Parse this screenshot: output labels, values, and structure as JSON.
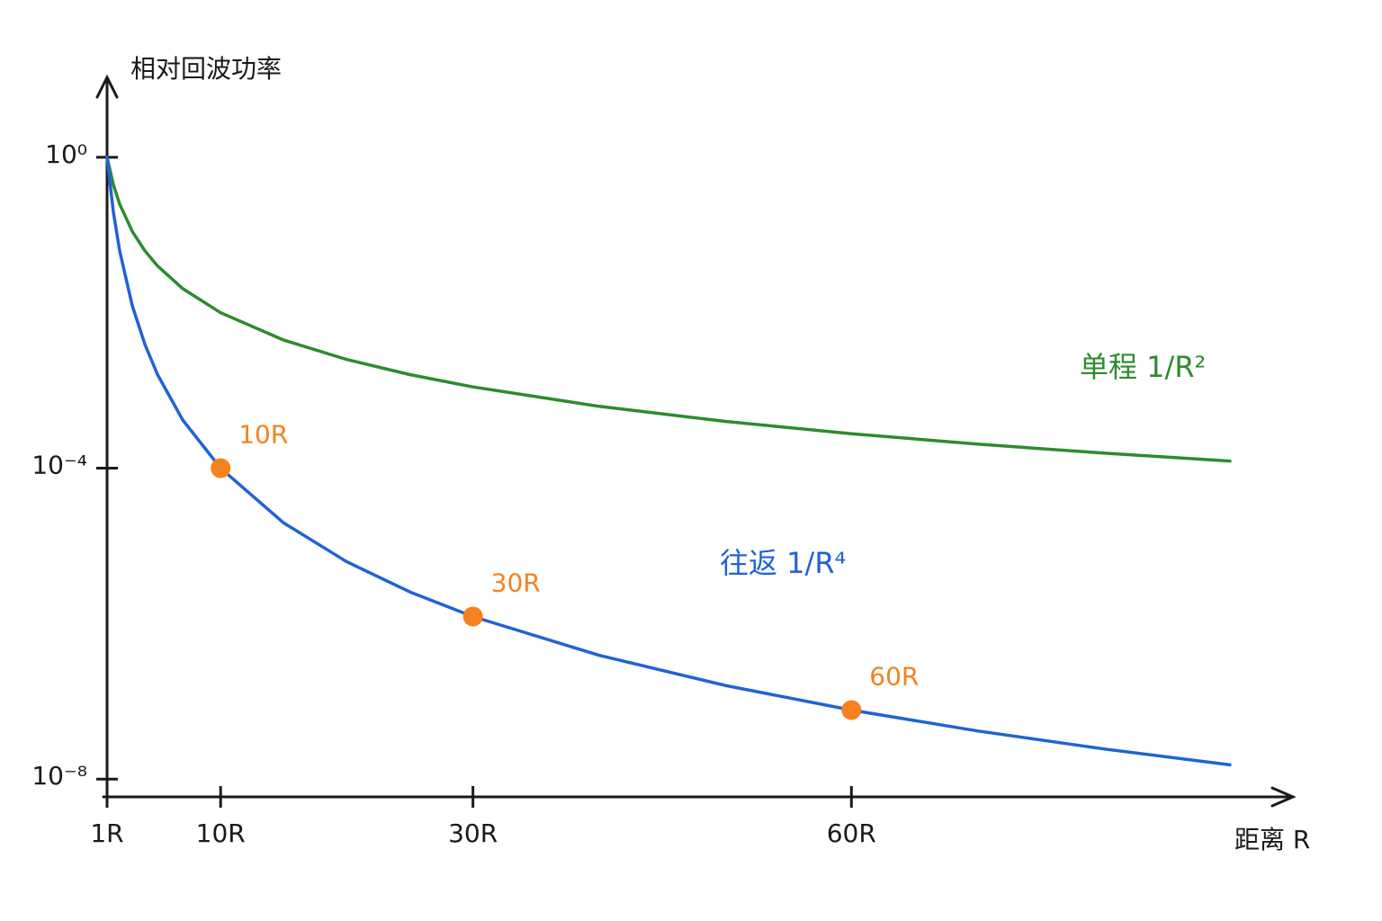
{
  "chart_data": {
    "type": "line",
    "y_label": "相对回波功率",
    "x_label": "距离 R",
    "log_y": true,
    "x": [
      1,
      1.5,
      2,
      3,
      4,
      5,
      7,
      10,
      15,
      20,
      25,
      30,
      40,
      50,
      60,
      70,
      80,
      90
    ],
    "series": [
      {
        "name": "单程 1/R²",
        "color": "#2e8b2e",
        "values": [
          1,
          0.4444,
          0.25,
          0.1111,
          0.0625,
          0.04,
          0.020408,
          0.01,
          0.004444,
          0.0025,
          0.0016,
          0.001111,
          0.000625,
          0.0004,
          0.0002778,
          0.0002041,
          0.00015625,
          0.00012346
        ]
      },
      {
        "name": "往返 1/R⁴",
        "color": "#1f63d6",
        "values": [
          1,
          0.19753,
          0.0625,
          0.012346,
          0.0039063,
          0.0016,
          0.00041649,
          0.0001,
          1.9753e-05,
          6.25e-06,
          2.56e-06,
          1.2346e-06,
          3.90625e-07,
          1.6e-07,
          7.716e-08,
          4.1649e-08,
          2.4414e-08,
          1.5242e-08
        ]
      }
    ],
    "highlights": {
      "color": "#f5821f",
      "x": [
        10,
        30,
        60
      ],
      "values": [
        0.0001,
        1.2346e-06,
        7.716e-08
      ],
      "labels": [
        "10R",
        "30R",
        "60R"
      ]
    },
    "xlim": [
      1,
      92
    ],
    "xticks": [
      {
        "value": 1,
        "label": "1R"
      },
      {
        "value": 10,
        "label": "10R"
      },
      {
        "value": 30,
        "label": "30R"
      },
      {
        "value": 60,
        "label": "60R"
      }
    ],
    "ylim": [
      5.9e-09,
      8.4
    ],
    "yticks": [
      {
        "value": 1,
        "label": "10⁰"
      },
      {
        "value": 0.0001,
        "label": "10⁻⁴"
      },
      {
        "value": 1e-08,
        "label": "10⁻⁸"
      }
    ]
  }
}
